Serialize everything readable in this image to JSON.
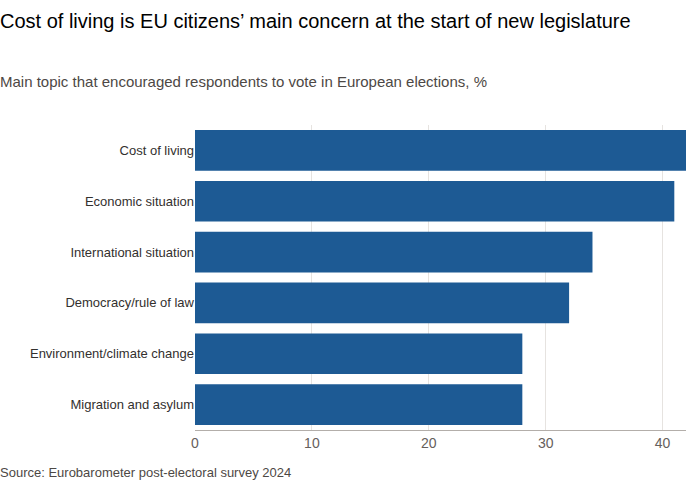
{
  "chart_data": {
    "type": "bar",
    "title": "Cost of living is EU citizens’ main concern at the start of new legislature",
    "subtitle": "Main topic that encouraged respondents to vote in European elections, %",
    "source": "Source: Eurobarometer post-electoral survey 2024",
    "orientation": "horizontal",
    "categories": [
      "Cost of living",
      "Economic situation",
      "International situation",
      "Democracy/rule of law",
      "Environment/climate change",
      "Migration and asylum"
    ],
    "values": [
      42,
      41,
      34,
      32,
      28,
      28
    ],
    "color": "#1d5a94",
    "xlim": [
      0,
      42
    ],
    "xticks": [
      0,
      10,
      20,
      30,
      40
    ],
    "grid": true
  }
}
